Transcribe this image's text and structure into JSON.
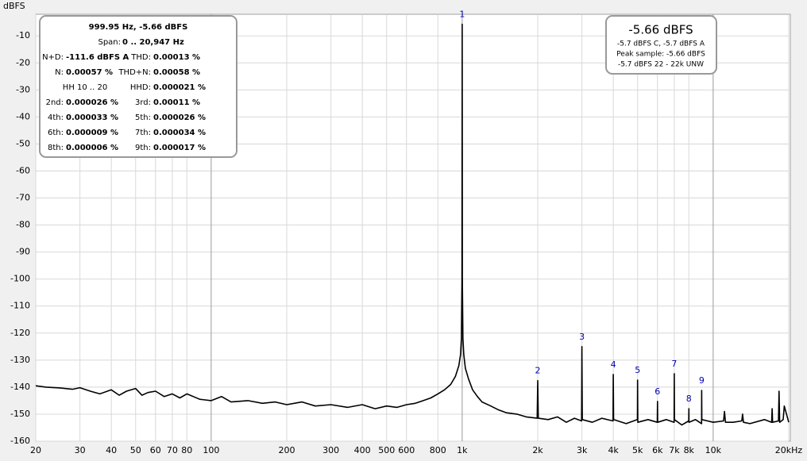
{
  "chart_data": {
    "type": "line",
    "y_label": "dBFS",
    "log_x": true,
    "grid": true,
    "color": "#000000",
    "xlim": [
      20,
      20000
    ],
    "ylim": [
      -160,
      -2
    ],
    "yticks": [
      -10,
      -20,
      -30,
      -40,
      -50,
      -60,
      -70,
      -80,
      -90,
      -100,
      -110,
      -120,
      -130,
      -140,
      -150,
      -160
    ],
    "xticks": [
      20,
      30,
      40,
      50,
      60,
      70,
      80,
      100,
      200,
      300,
      400,
      500,
      600,
      800,
      {
        "value": 1000,
        "label": "1k"
      },
      {
        "value": 2000,
        "label": "2k"
      },
      {
        "value": 3000,
        "label": "3k"
      },
      {
        "value": 4000,
        "label": "4k"
      },
      {
        "value": 5000,
        "label": "5k"
      },
      {
        "value": 6000,
        "label": "6k"
      },
      {
        "value": 7000,
        "label": "7k"
      },
      {
        "value": 8000,
        "label": "8k"
      },
      {
        "value": 10000,
        "label": "10k"
      },
      {
        "value": 20000,
        "label": "20kHz"
      }
    ],
    "x": [
      20,
      22,
      25,
      28,
      30,
      33,
      36,
      40,
      43,
      46,
      50,
      53,
      56,
      60,
      65,
      70,
      75,
      80,
      90,
      100,
      110,
      120,
      140,
      160,
      180,
      200,
      230,
      260,
      300,
      350,
      400,
      450,
      500,
      550,
      600,
      650,
      700,
      750,
      800,
      850,
      900,
      940,
      970,
      985,
      993,
      998,
      1000,
      1002,
      1007,
      1015,
      1030,
      1060,
      1100,
      1150,
      1200,
      1300,
      1400,
      1500,
      1650,
      1800,
      1990,
      2000,
      2010,
      2200,
      2400,
      2600,
      2800,
      2990,
      3000,
      3010,
      3300,
      3600,
      3990,
      4000,
      4010,
      4500,
      4990,
      5000,
      5010,
      5500,
      5990,
      6000,
      6010,
      6500,
      6990,
      7000,
      7010,
      7500,
      7990,
      8000,
      8010,
      8500,
      8990,
      9000,
      9010,
      10000,
      11000,
      11090,
      11200,
      12000,
      13000,
      13100,
      13200,
      14000,
      16000,
      17100,
      17170,
      17250,
      18200,
      18300,
      18400,
      19000,
      19200,
      20000
    ],
    "values": [
      -139.5,
      -140,
      -140.3,
      -140.8,
      -140.2,
      -141.5,
      -142.5,
      -141,
      -143,
      -141.5,
      -140.5,
      -143,
      -142,
      -141.5,
      -143.5,
      -142.5,
      -144,
      -142.5,
      -144.5,
      -145,
      -143.5,
      -145.5,
      -145,
      -146,
      -145.5,
      -146.5,
      -145.5,
      -147,
      -146.5,
      -147.5,
      -146.5,
      -148,
      -147,
      -147.5,
      -146.5,
      -146,
      -145,
      -144,
      -142.5,
      -141,
      -139,
      -136,
      -132,
      -128,
      -122,
      -100,
      -5.66,
      -100,
      -122,
      -128,
      -133,
      -137,
      -141,
      -143.5,
      -145.5,
      -147,
      -148.5,
      -149.5,
      -150,
      -151,
      -151.5,
      -137.6,
      -151.5,
      -152,
      -151,
      -153,
      -151.5,
      -152.5,
      -125,
      -152,
      -153,
      -151.5,
      -152.5,
      -135.3,
      -152,
      -153.5,
      -152,
      -137.4,
      -153,
      -152,
      -153,
      -145.3,
      -153,
      -152,
      -153,
      -135,
      -152,
      -154,
      -152.5,
      -148,
      -153,
      -152,
      -153.5,
      -141.2,
      -152,
      -153,
      -152.5,
      -149,
      -153,
      -153,
      -152.5,
      -150,
      -153,
      -153.5,
      -152,
      -153,
      -148,
      -153,
      -152.5,
      -141.5,
      -153,
      -152,
      -147,
      -153
    ],
    "peaks": [
      {
        "label": "1",
        "x": 1000,
        "y": -5.66
      },
      {
        "label": "2",
        "x": 2000,
        "y": -137.6
      },
      {
        "label": "3",
        "x": 3000,
        "y": -125
      },
      {
        "label": "4",
        "x": 4000,
        "y": -135.3
      },
      {
        "label": "5",
        "x": 5000,
        "y": -137.4
      },
      {
        "label": "6",
        "x": 6000,
        "y": -145.3
      },
      {
        "label": "7",
        "x": 7000,
        "y": -135
      },
      {
        "label": "8",
        "x": 8000,
        "y": -148
      },
      {
        "label": "9",
        "x": 9000,
        "y": -141.2
      }
    ],
    "readout": {
      "title": "999.95 Hz, -5.66 dBFS",
      "span_label": "Span:",
      "span_value": "0 .. 20,947 Hz",
      "rows": [
        [
          {
            "label": "N+D:",
            "value": "-111.6 dBFS A"
          },
          {
            "label": "THD:",
            "value": "0.00013 %"
          }
        ],
        [
          {
            "label": "N:",
            "value": "0.00057 %"
          },
          {
            "label": "THD+N:",
            "value": "0.00058 %"
          }
        ],
        [
          {
            "label": "HH 10 .. 20"
          },
          {
            "label": "HHD:",
            "value": "0.000021 %"
          }
        ],
        [
          {
            "label": "2nd:",
            "value": "0.000026 %"
          },
          {
            "label": "3rd:",
            "value": "0.00011 %"
          }
        ],
        [
          {
            "label": "4th:",
            "value": "0.000033 %"
          },
          {
            "label": "5th:",
            "value": "0.000026 %"
          }
        ],
        [
          {
            "label": "6th:",
            "value": "0.000009 %"
          },
          {
            "label": "7th:",
            "value": "0.000034 %"
          }
        ],
        [
          {
            "label": "8th:",
            "value": "0.000006 %"
          },
          {
            "label": "9th:",
            "value": "0.000017 %"
          }
        ]
      ]
    },
    "level_box": {
      "title": "-5.66 dBFS",
      "lines": [
        "-5.7 dBFS C, -5.7 dBFS A",
        "Peak sample: -5.66 dBFS",
        "-5.7 dBFS 22 - 22k UNW"
      ]
    }
  }
}
